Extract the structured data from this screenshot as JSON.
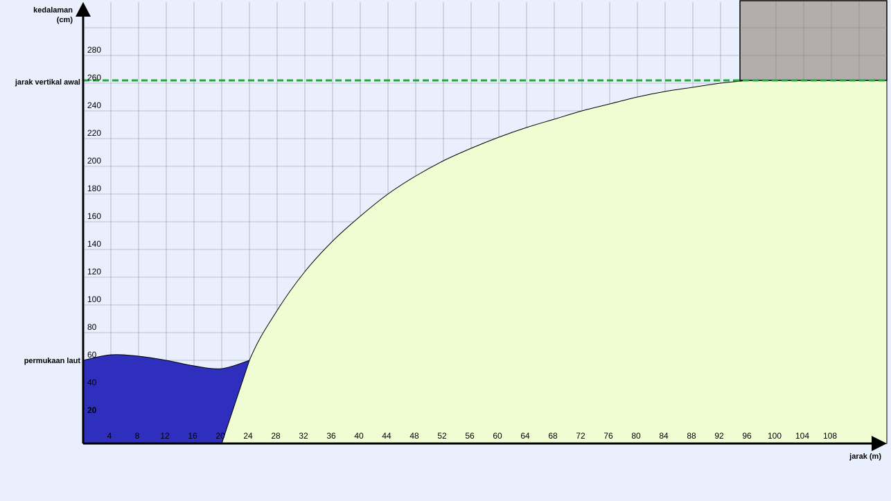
{
  "labels": {
    "y_axis_title_line1": "kedalaman",
    "y_axis_title_line2": "(cm)",
    "x_axis_title": "jarak (m)",
    "initial_vertical_distance": "jarak vertikal awal",
    "sea_surface": "permukaan laut"
  },
  "colors": {
    "background": "#e9effd",
    "grid": "#8f939c",
    "water": "#2f2fbd",
    "land": "#f0fcd2",
    "block": "#b3adac",
    "dashed_line": "#22a83a",
    "axis": "#000000"
  },
  "chart_data": {
    "type": "area",
    "xlabel": "jarak (m)",
    "ylabel": "kedalaman (cm)",
    "xlim": [
      0,
      116
    ],
    "ylim": [
      0,
      300
    ],
    "x_ticks": [
      "4",
      "8",
      "12",
      "16",
      "20",
      "24",
      "28",
      "32",
      "36",
      "40",
      "44",
      "48",
      "52",
      "56",
      "60",
      "64",
      "68",
      "72",
      "76",
      "80",
      "84",
      "88",
      "92",
      "96",
      "100",
      "104",
      "108"
    ],
    "y_ticks": [
      "20",
      "40",
      "60",
      "80",
      "100",
      "120",
      "140",
      "160",
      "180",
      "200",
      "220",
      "240",
      "260",
      "280"
    ],
    "grid": true,
    "reference_lines": [
      {
        "label": "jarak vertikal awal",
        "y": 262,
        "style": "dashed"
      },
      {
        "label": "permukaan laut",
        "y": 60
      }
    ],
    "series": [
      {
        "name": "",
        "x": [
          20,
          24,
          28,
          32,
          36,
          40,
          44,
          48,
          52,
          56,
          60,
          64,
          68,
          72,
          76,
          80,
          84,
          88,
          92,
          96
        ],
        "y": [
          0,
          60,
          96,
          124,
          146,
          164,
          180,
          193,
          204,
          213,
          221,
          228,
          234,
          240,
          245,
          250,
          254,
          257,
          260,
          262
        ]
      },
      {
        "name": "",
        "x": [
          0,
          4,
          8,
          12,
          16,
          20,
          24
        ],
        "y": [
          60,
          64,
          63,
          60,
          56,
          54,
          60
        ]
      }
    ]
  }
}
